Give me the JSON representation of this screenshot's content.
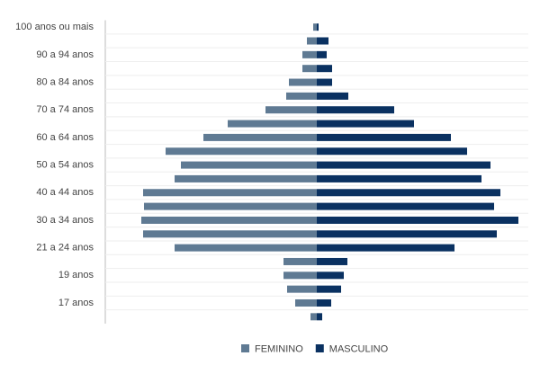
{
  "chart_data": {
    "type": "population-pyramid",
    "categories": [
      "100 anos ou mais",
      null,
      "90 a 94 anos",
      null,
      "80 a 84 anos",
      null,
      "70 a 74 anos",
      null,
      "60 a 64 anos",
      null,
      "50 a 54 anos",
      null,
      "40 a 44 anos",
      null,
      "30 a 34 anos",
      null,
      "21 a 24 anos",
      null,
      "19 anos",
      null,
      "17 anos",
      null
    ],
    "series": [
      {
        "name": "FEMININO",
        "color": "#5f7a93",
        "side": "left",
        "values": [
          4,
          11,
          16,
          16,
          31,
          34,
          57,
          99,
          126,
          168,
          151,
          158,
          193,
          192,
          195,
          193,
          158,
          37,
          37,
          33,
          24,
          7
        ]
      },
      {
        "name": "MASCULINO",
        "color": "#0a3161",
        "side": "right",
        "values": [
          2,
          13,
          11,
          17,
          17,
          35,
          86,
          108,
          149,
          167,
          193,
          183,
          204,
          197,
          224,
          200,
          153,
          34,
          30,
          27,
          16,
          6
        ]
      }
    ],
    "xlim": [
      0,
      235
    ],
    "grid": true,
    "legend": "bottom"
  }
}
